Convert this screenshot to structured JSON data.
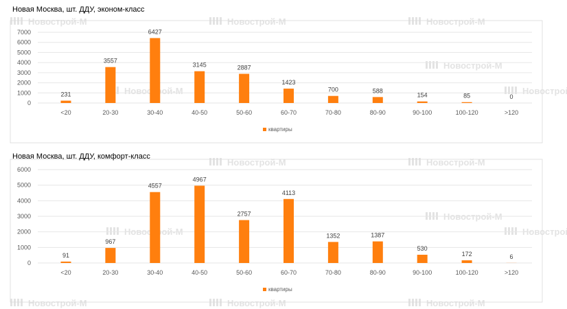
{
  "watermark": "Новострой-М",
  "colors": {
    "bar": "#ff7f0e",
    "grid": "#e6e6e6",
    "frame": "#d9d9d9"
  },
  "chart_data": [
    {
      "type": "bar",
      "title": "Новая Москва, шт. ДДУ, эконом-класс",
      "categories": [
        "<20",
        "20-30",
        "30-40",
        "40-50",
        "50-60",
        "60-70",
        "70-80",
        "80-90",
        "90-100",
        "100-120",
        ">120"
      ],
      "series": [
        {
          "name": "квартиры",
          "values": [
            231,
            3557,
            6427,
            3145,
            2887,
            1423,
            700,
            588,
            154,
            85,
            0
          ]
        }
      ],
      "yticks": [
        0,
        1000,
        2000,
        3000,
        4000,
        5000,
        6000,
        7000
      ],
      "ylim": [
        0,
        7000
      ],
      "xlabel": "",
      "ylabel": "",
      "grid": true,
      "legend": "bottom-center"
    },
    {
      "type": "bar",
      "title": "Новая Москва, шт. ДДУ, комфорт-класс",
      "categories": [
        "<20",
        "20-30",
        "30-40",
        "40-50",
        "50-60",
        "60-70",
        "70-80",
        "80-90",
        "90-100",
        "100-120",
        ">120"
      ],
      "series": [
        {
          "name": "квартиры",
          "values": [
            91,
            967,
            4557,
            4967,
            2757,
            4113,
            1352,
            1387,
            530,
            172,
            6
          ]
        }
      ],
      "yticks": [
        0,
        1000,
        2000,
        3000,
        4000,
        5000,
        6000
      ],
      "ylim": [
        0,
        6000
      ],
      "xlabel": "",
      "ylabel": "",
      "grid": true,
      "legend": "bottom-center"
    }
  ]
}
